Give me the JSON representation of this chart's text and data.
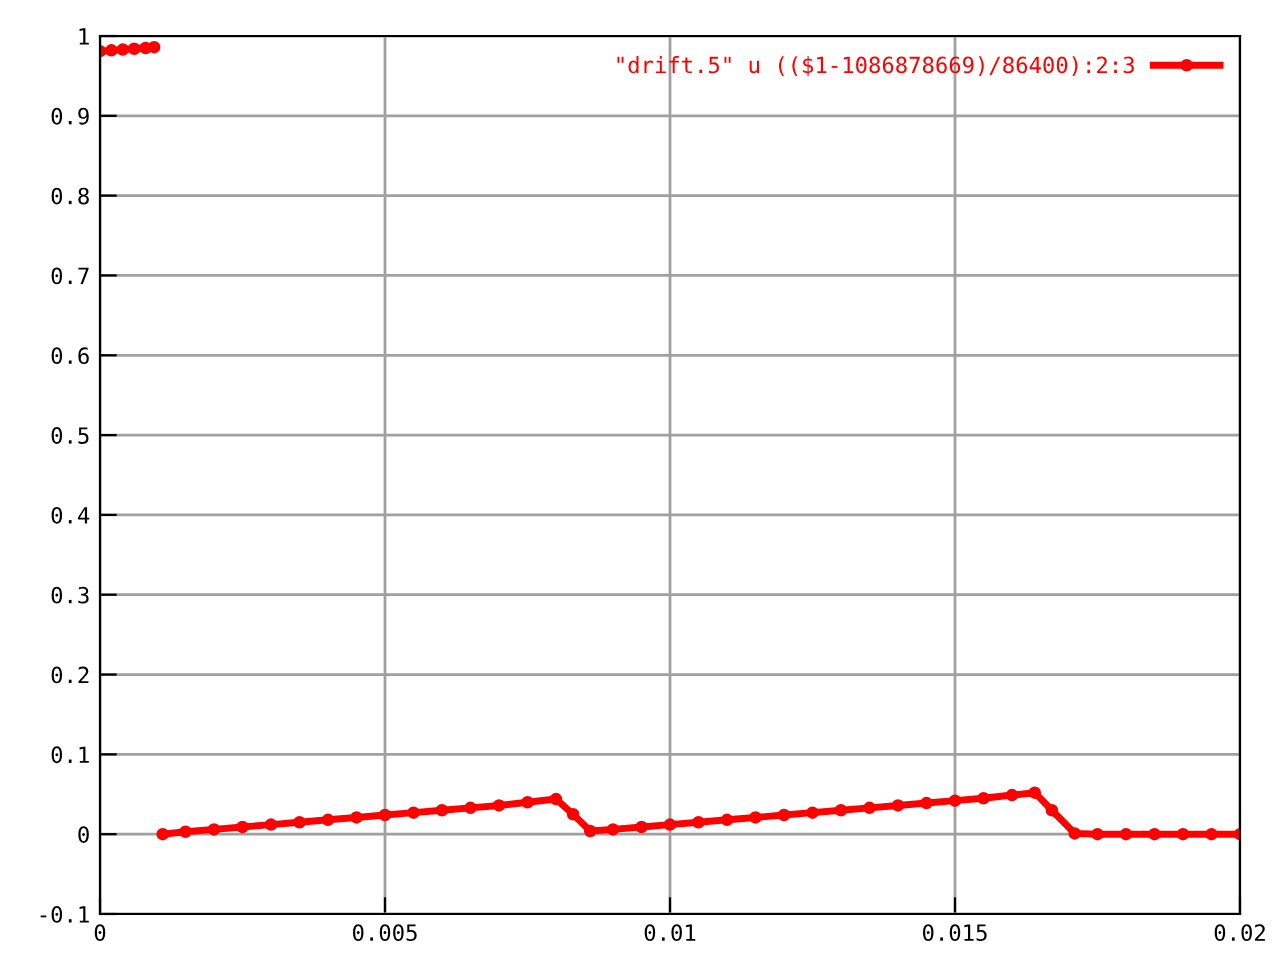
{
  "chart_data": {
    "type": "line",
    "series": [
      {
        "name": "\"drift.5\" u (($1-1086878669)/86400):2:3",
        "color": "#ff0000",
        "x": [
          0,
          0.0002,
          0.0004,
          0.0006,
          0.0008,
          0.00095,
          0.001,
          0.0011,
          0.0015,
          0.002,
          0.0025,
          0.003,
          0.0035,
          0.004,
          0.0045,
          0.005,
          0.0055,
          0.006,
          0.0065,
          0.007,
          0.0075,
          0.008,
          0.0083,
          0.0086,
          0.009,
          0.0095,
          0.01,
          0.0105,
          0.011,
          0.0115,
          0.012,
          0.0125,
          0.013,
          0.0135,
          0.014,
          0.0145,
          0.015,
          0.0155,
          0.016,
          0.0164,
          0.0167,
          0.0171,
          0.0175,
          0.018,
          0.0185,
          0.019,
          0.0195,
          0.02
        ],
        "values": [
          0.981,
          0.982,
          0.983,
          0.984,
          0.985,
          0.986,
          null,
          0.0,
          0.003,
          0.006,
          0.009,
          0.012,
          0.015,
          0.018,
          0.021,
          0.024,
          0.027,
          0.03,
          0.033,
          0.036,
          0.04,
          0.044,
          0.025,
          0.004,
          0.006,
          0.009,
          0.012,
          0.015,
          0.018,
          0.021,
          0.024,
          0.027,
          0.03,
          0.033,
          0.036,
          0.039,
          0.042,
          0.045,
          0.049,
          0.052,
          0.03,
          0.001,
          0.0,
          0.0,
          0.0,
          0.0,
          0.0,
          0.0
        ]
      }
    ],
    "xlim": [
      0,
      0.02
    ],
    "xticks": [
      0,
      0.005,
      0.01,
      0.015,
      0.02
    ],
    "ylim": [
      -0.1,
      1
    ],
    "yticks": [
      -0.1,
      0,
      0.1,
      0.2,
      0.3,
      0.4,
      0.5,
      0.6,
      0.7,
      0.8,
      0.9,
      1
    ],
    "grid": true,
    "legend": "top right",
    "marker": "circle",
    "line_style": "solid"
  }
}
